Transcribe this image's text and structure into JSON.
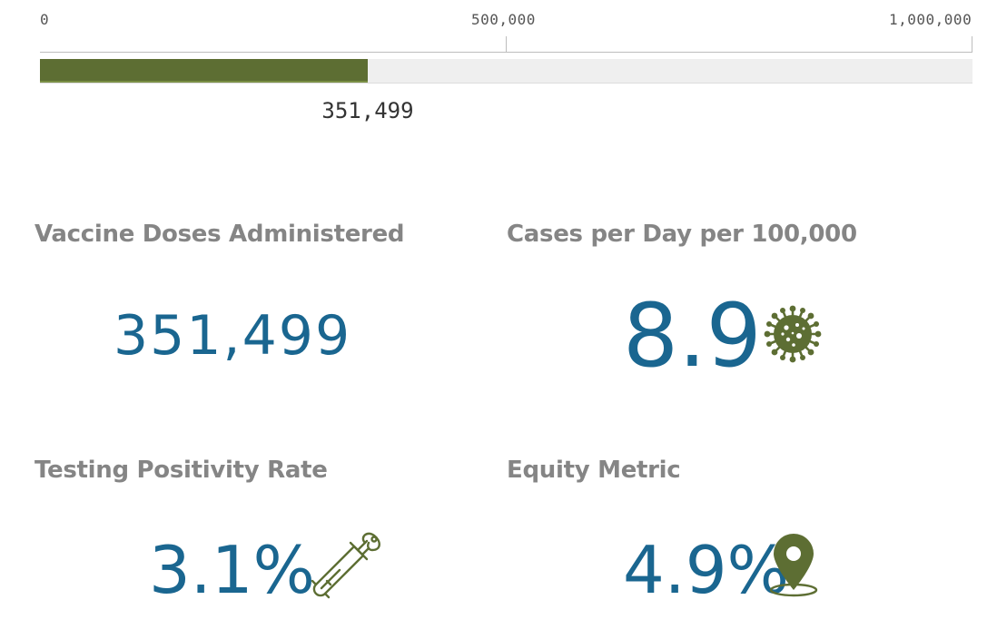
{
  "progress": {
    "ticks": [
      "0",
      "500,000",
      "1,000,000"
    ],
    "value": 351499,
    "max": 1000000,
    "value_label": "351,499"
  },
  "kpis": {
    "vaccine": {
      "title": "Vaccine Doses Administered",
      "value": "351,499"
    },
    "cases": {
      "title": "Cases per Day per 100,000",
      "value": "8.9",
      "icon": "virus-icon"
    },
    "testing": {
      "title": "Testing Positivity Rate",
      "value": "3.1%",
      "icon": "test-tube-icon"
    },
    "equity": {
      "title": "Equity Metric",
      "value": "4.9%",
      "icon": "map-pin-icon"
    }
  },
  "colors": {
    "bar_fill": "#5d6e33",
    "value_blue": "#1a6690",
    "icon_green": "#5d6e33",
    "title_gray": "#858585"
  }
}
